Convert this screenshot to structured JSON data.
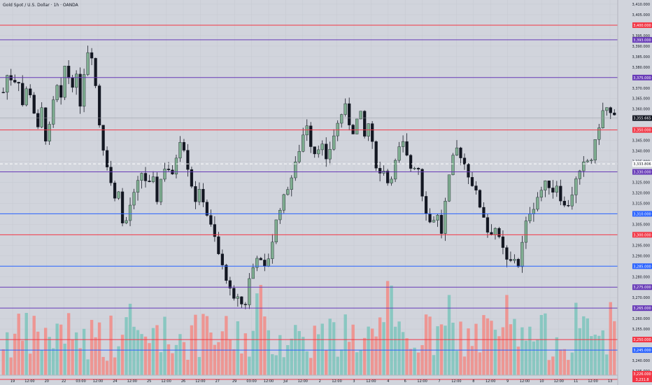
{
  "header": {
    "title": "Gold Spot / U.S. Dollar · 1h · OANDA"
  },
  "chart_data": {
    "type": "candlestick",
    "title": "Gold Spot / U.S. Dollar · 1h · OANDA",
    "ylim": [
      3233,
      3410
    ],
    "y_ticks": [
      3410,
      3405,
      3400,
      3395,
      3390,
      3385,
      3380,
      3375,
      3370,
      3365,
      3360,
      3355,
      3350,
      3345,
      3340,
      3335,
      3330,
      3325,
      3320,
      3315,
      3310,
      3305,
      3300,
      3295,
      3290,
      3285,
      3280,
      3275,
      3270,
      3265,
      3260,
      3255,
      3250,
      3245,
      3240,
      3235
    ],
    "y_tick_labels": [
      "3,410.000",
      "3,405.000",
      "3,400.000",
      "3,395.000",
      "3,390.000",
      "3,385.000",
      "3,380.000",
      "3,375.000",
      "3,370.000",
      "3,365.000",
      "3,360.000",
      "3,355.000",
      "3,350.000",
      "3,345.000",
      "3,340.000",
      "3,335.000",
      "3,330.000",
      "3,325.000",
      "3,320.000",
      "3,315.000",
      "3,310.000",
      "3,305.000",
      "3,300.000",
      "3,295.000",
      "3,290.000",
      "3,285.000",
      "3,280.000",
      "3,275.000",
      "3,270.000",
      "3,265.000",
      "3,260.000",
      "3,255.000",
      "3,250.000",
      "3,245.000",
      "3,240.000",
      "3,235.000"
    ],
    "x_tick_labels": [
      "19",
      "12:00",
      "20",
      "22",
      "03:00",
      "12:00",
      "24",
      "12:00",
      "25",
      "12:00",
      "26",
      "12:00",
      "27",
      "29",
      "03:00",
      "12:00",
      "Jul",
      "12:00",
      "2",
      "12:00",
      "3",
      "12:00",
      "4",
      "6",
      "12:00",
      "7",
      "12:00",
      "8",
      "12:00",
      "9",
      "12:00",
      "10",
      "12:00",
      "11",
      "12:00",
      "13"
    ],
    "levels": [
      {
        "value": 3400,
        "label": "3,400.000",
        "color": "#f23645"
      },
      {
        "value": 3393,
        "label": "3,393.000",
        "color": "#673ab7"
      },
      {
        "value": 3375,
        "label": "3,375.000",
        "color": "#673ab7"
      },
      {
        "value": 3350,
        "label": "3,350.000",
        "color": "#f23645"
      },
      {
        "value": 3330,
        "label": "3,330.000",
        "color": "#673ab7"
      },
      {
        "value": 3310,
        "label": "3,310.000",
        "color": "#2962ff"
      },
      {
        "value": 3300,
        "label": "3,300.000",
        "color": "#f23645"
      },
      {
        "value": 3285,
        "label": "3,285.000",
        "color": "#2962ff"
      },
      {
        "value": 3275,
        "label": "3,275.000",
        "color": "#673ab7"
      },
      {
        "value": 3265,
        "label": "3,265.000",
        "color": "#673ab7"
      },
      {
        "value": 3250,
        "label": "3,250.000",
        "color": "#f23645"
      },
      {
        "value": 3245,
        "label": "3,245.000",
        "color": "#2962ff"
      },
      {
        "value": 3233,
        "label": "3,233.000",
        "color": "#f23645"
      },
      {
        "value": 3231,
        "label": "3,231.8",
        "color": "#f23645"
      }
    ],
    "current_price": {
      "value": 3355.665,
      "label": "3,355.665",
      "color": "#131722"
    },
    "crosshair": {
      "value": 3333.806,
      "label": "3,333.806"
    },
    "volume_label": "3,226.000",
    "price_path": [
      3368,
      3378,
      3372,
      3376,
      3362,
      3371,
      3365,
      3348,
      3360,
      3342,
      3358,
      3372,
      3364,
      3385,
      3368,
      3378,
      3362,
      3382,
      3392,
      3375,
      3352,
      3338,
      3330,
      3316,
      3322,
      3300,
      3312,
      3318,
      3325,
      3331,
      3322,
      3328,
      3316,
      3330,
      3334,
      3326,
      3338,
      3348,
      3336,
      3325,
      3316,
      3322,
      3312,
      3305,
      3298,
      3288,
      3282,
      3274,
      3268,
      3272,
      3262,
      3278,
      3285,
      3292,
      3282,
      3288,
      3298,
      3310,
      3316,
      3322,
      3328,
      3336,
      3345,
      3354,
      3342,
      3338,
      3346,
      3334,
      3342,
      3350,
      3356,
      3362,
      3352,
      3348,
      3362,
      3346,
      3354,
      3338,
      3328,
      3332,
      3324,
      3330,
      3340,
      3344,
      3336,
      3330,
      3336,
      3320,
      3310,
      3304,
      3312,
      3300,
      3318,
      3332,
      3342,
      3338,
      3333,
      3326,
      3322,
      3314,
      3308,
      3298,
      3305,
      3298,
      3292,
      3285,
      3290,
      3285,
      3298,
      3310,
      3312,
      3318,
      3322,
      3326,
      3320,
      3324,
      3316,
      3312,
      3318,
      3326,
      3330,
      3336,
      3334,
      3344,
      3354,
      3362,
      3358,
      3356
    ]
  }
}
